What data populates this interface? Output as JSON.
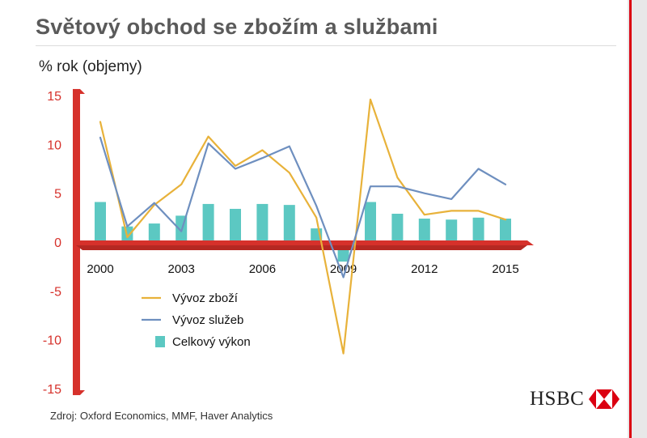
{
  "page": {
    "title": "Světový obchod se zbožím a službami",
    "subtitle": "% rok (objemy)",
    "source": "Zdroj: Oxford Economics, MMF, Haver Analytics",
    "logo_text": "HSBC"
  },
  "colors": {
    "axis": "#d6312b",
    "goods": "#e8b23a",
    "services": "#6e8fbf",
    "total": "#5cc8c2",
    "brand_red": "#db0011"
  },
  "chart_data": {
    "type": "bar",
    "ylim": [
      -15,
      15
    ],
    "yticks": [
      15,
      10,
      5,
      0,
      -5,
      -10,
      -15
    ],
    "x": [
      2000,
      2001,
      2002,
      2003,
      2004,
      2005,
      2006,
      2007,
      2008,
      2009,
      2010,
      2011,
      2012,
      2013,
      2014,
      2015
    ],
    "xtick_labels": [
      "2000",
      "2003",
      "2006",
      "2009",
      "2012",
      "2015"
    ],
    "series": [
      {
        "name": "Vývoz zboží",
        "kind": "line",
        "color": "#e8b23a",
        "values": [
          12.3,
          0.5,
          3.8,
          5.9,
          10.8,
          7.8,
          9.4,
          7.1,
          2.5,
          -11.4,
          14.6,
          6.6,
          2.8,
          3.2,
          3.2,
          2.3
        ]
      },
      {
        "name": "Vývoz služeb",
        "kind": "line",
        "color": "#6e8fbf",
        "values": [
          10.7,
          1.6,
          4.0,
          1.1,
          10.1,
          7.5,
          8.6,
          9.8,
          3.7,
          -3.6,
          5.7,
          5.7,
          5.0,
          4.4,
          7.5,
          5.9
        ]
      },
      {
        "name": "Celkový výkon",
        "kind": "bar",
        "color": "#5cc8c2",
        "values": [
          4.1,
          1.6,
          1.9,
          2.7,
          3.9,
          3.4,
          3.9,
          3.8,
          1.4,
          -2.0,
          4.1,
          2.9,
          2.4,
          2.3,
          2.5,
          2.4
        ]
      }
    ]
  }
}
